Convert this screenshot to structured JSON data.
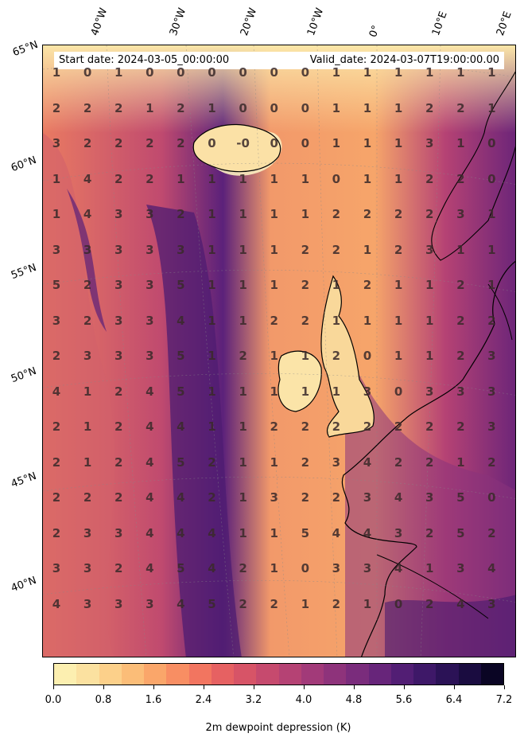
{
  "header": {
    "start_date": "Start date: 2024-03-05_00:00:00",
    "valid_date": "Valid_date: 2024-03-07T19:00:00.00"
  },
  "lon_labels": [
    "40°W",
    "30°W",
    "20°W",
    "10°W",
    "0°",
    "10°E",
    "20°E"
  ],
  "lat_labels": [
    "65°N",
    "60°N",
    "55°N",
    "50°N",
    "45°N",
    "40°N"
  ],
  "colorbar": {
    "label": "2m dewpoint depression (K)",
    "ticks": [
      "0.0",
      "0.8",
      "1.6",
      "2.4",
      "3.2",
      "4.0",
      "4.8",
      "5.6",
      "6.4",
      "7.2"
    ],
    "colors": [
      "#fcefb0",
      "#fbe1a0",
      "#fcd08a",
      "#fbbd78",
      "#faa66a",
      "#f88e63",
      "#f27560",
      "#e66162",
      "#d75467",
      "#c64a6e",
      "#b54274",
      "#a23a79",
      "#8e337b",
      "#7a2c7c",
      "#67257a",
      "#521e74",
      "#3e1868",
      "#2b1256",
      "#1a0c40",
      "#0a0524"
    ]
  },
  "values": [
    [
      "1",
      "0",
      "1",
      "0",
      "0",
      "0",
      "0",
      "0",
      "0",
      "1",
      "1",
      "1",
      "1",
      "1",
      "1"
    ],
    [
      "2",
      "2",
      "2",
      "1",
      "2",
      "1",
      "0",
      "0",
      "0",
      "1",
      "1",
      "1",
      "2",
      "2",
      "1"
    ],
    [
      "3",
      "2",
      "2",
      "2",
      "2",
      "0",
      "-0",
      "0",
      "0",
      "1",
      "1",
      "1",
      "3",
      "1",
      "0"
    ],
    [
      "1",
      "4",
      "2",
      "2",
      "1",
      "1",
      "1",
      "1",
      "1",
      "0",
      "1",
      "1",
      "2",
      "2",
      "0"
    ],
    [
      "1",
      "4",
      "3",
      "3",
      "2",
      "1",
      "1",
      "1",
      "1",
      "2",
      "2",
      "2",
      "2",
      "3",
      "1"
    ],
    [
      "3",
      "3",
      "3",
      "3",
      "3",
      "1",
      "1",
      "1",
      "2",
      "2",
      "1",
      "2",
      "3",
      "1",
      "1"
    ],
    [
      "5",
      "2",
      "3",
      "3",
      "5",
      "1",
      "1",
      "1",
      "2",
      "1",
      "2",
      "1",
      "1",
      "2",
      "1"
    ],
    [
      "3",
      "2",
      "3",
      "3",
      "4",
      "1",
      "1",
      "2",
      "2",
      "1",
      "1",
      "1",
      "1",
      "2",
      "2"
    ],
    [
      "2",
      "3",
      "3",
      "3",
      "5",
      "1",
      "2",
      "1",
      "1",
      "2",
      "0",
      "1",
      "1",
      "2",
      "3"
    ],
    [
      "4",
      "1",
      "2",
      "4",
      "5",
      "1",
      "1",
      "1",
      "1",
      "1",
      "3",
      "0",
      "3",
      "3",
      "3"
    ],
    [
      "2",
      "1",
      "2",
      "4",
      "4",
      "1",
      "1",
      "2",
      "2",
      "2",
      "2",
      "2",
      "2",
      "2",
      "3"
    ],
    [
      "2",
      "1",
      "2",
      "4",
      "5",
      "2",
      "1",
      "1",
      "2",
      "3",
      "4",
      "2",
      "2",
      "1",
      "2"
    ],
    [
      "2",
      "2",
      "2",
      "4",
      "4",
      "2",
      "1",
      "3",
      "2",
      "2",
      "3",
      "4",
      "3",
      "5",
      "0"
    ],
    [
      "2",
      "3",
      "3",
      "4",
      "4",
      "4",
      "1",
      "1",
      "5",
      "4",
      "4",
      "3",
      "2",
      "5",
      "2"
    ],
    [
      "3",
      "3",
      "2",
      "4",
      "5",
      "4",
      "2",
      "1",
      "0",
      "3",
      "3",
      "4",
      "1",
      "3",
      "4"
    ],
    [
      "4",
      "3",
      "3",
      "3",
      "4",
      "5",
      "2",
      "2",
      "1",
      "2",
      "1",
      "0",
      "2",
      "4",
      "3"
    ]
  ]
}
